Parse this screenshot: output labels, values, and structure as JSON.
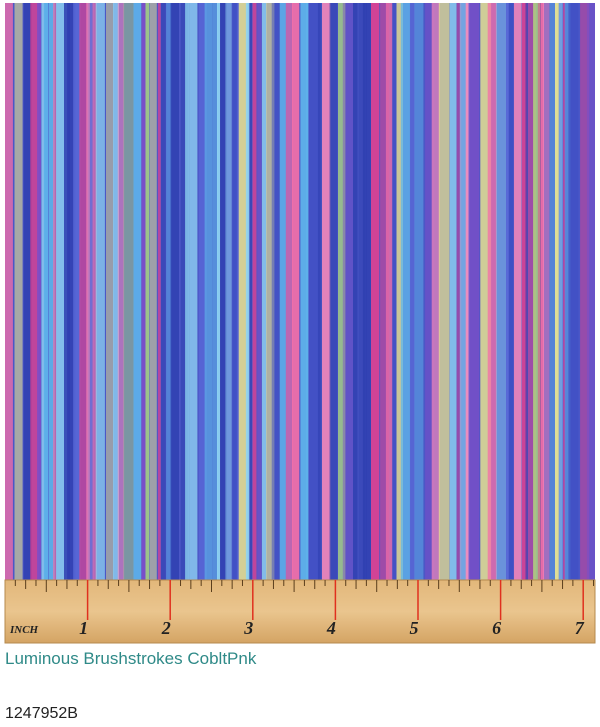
{
  "product": {
    "name": "Luminous Brushstrokes CobltPnk",
    "sku": "1247952B"
  },
  "ruler": {
    "unit": "INCH",
    "marks": [
      "1",
      "2",
      "3",
      "4",
      "5",
      "6",
      "7"
    ]
  }
}
